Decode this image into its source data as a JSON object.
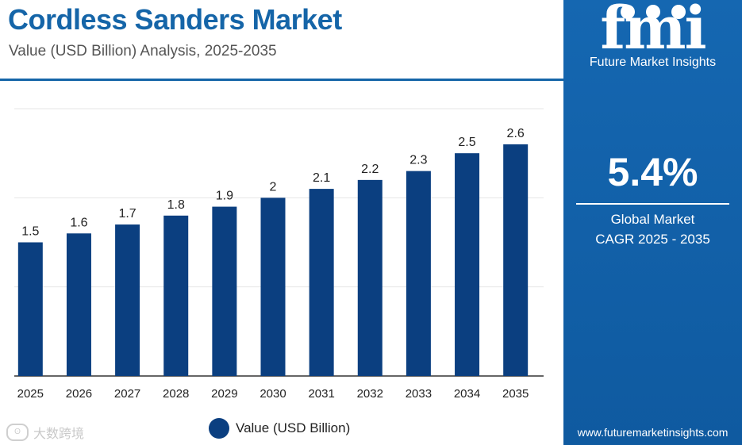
{
  "header": {
    "title": "Cordless Sanders Market",
    "subtitle": "Value (USD Billion) Analysis, 2025-2035"
  },
  "chart_data": {
    "type": "bar",
    "categories": [
      "2025",
      "2026",
      "2027",
      "2028",
      "2029",
      "2030",
      "2031",
      "2032",
      "2033",
      "2034",
      "2035"
    ],
    "series": [
      {
        "name": "Value (USD Billion)",
        "values": [
          1.5,
          1.6,
          1.7,
          1.8,
          1.9,
          2,
          2.1,
          2.2,
          2.3,
          2.5,
          2.6
        ]
      }
    ],
    "data_labels": [
      "1.5",
      "1.6",
      "1.7",
      "1.8",
      "1.9",
      "2",
      "2.1",
      "2.2",
      "2.3",
      "2.5",
      "2.6"
    ],
    "ylim": [
      0,
      3
    ],
    "grid": true,
    "legend": "bottom-center",
    "bar_color": "#0b3f80"
  },
  "legend": {
    "label": "Value (USD Billion)"
  },
  "side_panel": {
    "brand_letters": "fmi",
    "brand_name": "Future Market Insights",
    "cagr_value": "5.4%",
    "cagr_label_line1": "Global Market",
    "cagr_label_line2": "CAGR 2025 - 2035",
    "website": "www.futuremarketinsights.com",
    "background": "#1567b1"
  },
  "watermark": {
    "text": "大数跨境"
  }
}
